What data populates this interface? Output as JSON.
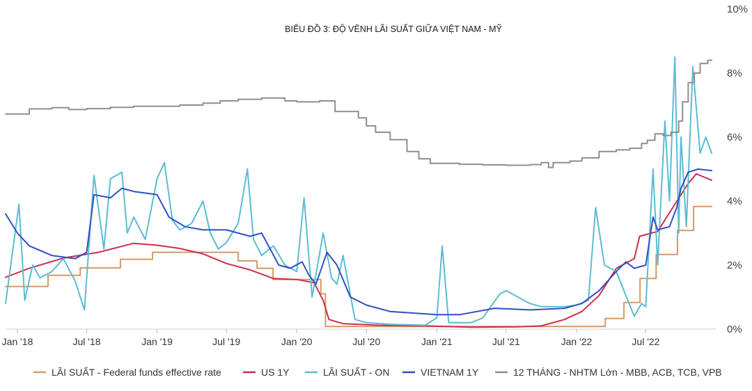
{
  "chart_data": {
    "type": "line",
    "title": "BIỂU ĐỒ 3: ĐỘ VÊNH LÃI SUẤT GIỮA VIỆT NAM - MỸ",
    "xlabel": "",
    "ylabel": "",
    "y_axis_side": "right",
    "ylim": [
      0,
      10
    ],
    "y_ticks": [
      {
        "value": 0,
        "label": "0%"
      },
      {
        "value": 2,
        "label": "2%"
      },
      {
        "value": 4,
        "label": "4%"
      },
      {
        "value": 6,
        "label": "6%"
      },
      {
        "value": 8,
        "label": "8%"
      },
      {
        "value": 10,
        "label": "10%"
      }
    ],
    "xlim": [
      "2017-12-01",
      "2022-12-31"
    ],
    "x_ticks": [
      {
        "date": "2018-01-01",
        "label": "Jan '18"
      },
      {
        "date": "2018-07-01",
        "label": "Jul '18"
      },
      {
        "date": "2019-01-01",
        "label": "Jan '19"
      },
      {
        "date": "2019-07-01",
        "label": "Jul '19"
      },
      {
        "date": "2020-01-01",
        "label": "Jan '20"
      },
      {
        "date": "2020-07-01",
        "label": "Jul '20"
      },
      {
        "date": "2021-01-01",
        "label": "Jan '21"
      },
      {
        "date": "2021-07-01",
        "label": "Jul '21"
      },
      {
        "date": "2022-01-01",
        "label": "Jan '22"
      },
      {
        "date": "2022-07-01",
        "label": "Jul '22"
      }
    ],
    "grid": false,
    "legend_position": "bottom",
    "series": [
      {
        "name": "LÃI SUẤT - Federal funds effective rate",
        "color": "#d4996a",
        "step": true,
        "points": [
          [
            "2017-12-01",
            1.33
          ],
          [
            "2018-03-22",
            1.68
          ],
          [
            "2018-06-14",
            1.91
          ],
          [
            "2018-09-27",
            2.18
          ],
          [
            "2018-12-20",
            2.4
          ],
          [
            "2019-08-01",
            2.13
          ],
          [
            "2019-09-19",
            1.9
          ],
          [
            "2019-10-31",
            1.55
          ],
          [
            "2020-03-04",
            1.1
          ],
          [
            "2020-03-16",
            0.08
          ],
          [
            "2021-01-01",
            0.08
          ],
          [
            "2022-03-17",
            0.33
          ],
          [
            "2022-05-05",
            0.83
          ],
          [
            "2022-06-16",
            1.58
          ],
          [
            "2022-07-28",
            2.33
          ],
          [
            "2022-09-22",
            3.08
          ],
          [
            "2022-11-03",
            3.83
          ],
          [
            "2022-12-20",
            3.83
          ]
        ]
      },
      {
        "name": "US 1Y",
        "color": "#cc2e4a",
        "step": false,
        "points": [
          [
            "2017-12-01",
            1.62
          ],
          [
            "2018-02-01",
            1.9
          ],
          [
            "2018-05-01",
            2.22
          ],
          [
            "2018-08-01",
            2.4
          ],
          [
            "2018-11-01",
            2.68
          ],
          [
            "2019-01-01",
            2.62
          ],
          [
            "2019-03-01",
            2.52
          ],
          [
            "2019-05-01",
            2.35
          ],
          [
            "2019-07-01",
            2.05
          ],
          [
            "2019-09-01",
            1.85
          ],
          [
            "2019-11-01",
            1.58
          ],
          [
            "2020-01-01",
            1.55
          ],
          [
            "2020-02-15",
            1.45
          ],
          [
            "2020-03-10",
            0.9
          ],
          [
            "2020-03-25",
            0.3
          ],
          [
            "2020-05-01",
            0.17
          ],
          [
            "2020-08-01",
            0.12
          ],
          [
            "2020-12-01",
            0.1
          ],
          [
            "2021-04-01",
            0.06
          ],
          [
            "2021-08-01",
            0.07
          ],
          [
            "2021-10-01",
            0.1
          ],
          [
            "2021-12-01",
            0.3
          ],
          [
            "2022-01-15",
            0.55
          ],
          [
            "2022-03-01",
            1.05
          ],
          [
            "2022-04-15",
            1.9
          ],
          [
            "2022-06-01",
            2.2
          ],
          [
            "2022-06-15",
            2.9
          ],
          [
            "2022-08-01",
            3.05
          ],
          [
            "2022-09-15",
            3.9
          ],
          [
            "2022-10-20",
            4.55
          ],
          [
            "2022-11-10",
            4.85
          ],
          [
            "2022-12-20",
            4.65
          ]
        ]
      },
      {
        "name": "LÃI SUẤT - ON",
        "color": "#5bbcd1",
        "step": false,
        "points": [
          [
            "2017-12-01",
            0.8
          ],
          [
            "2018-01-05",
            3.9
          ],
          [
            "2018-01-20",
            0.9
          ],
          [
            "2018-02-10",
            2.0
          ],
          [
            "2018-03-01",
            1.6
          ],
          [
            "2018-04-01",
            1.8
          ],
          [
            "2018-05-01",
            2.2
          ],
          [
            "2018-06-01",
            1.5
          ],
          [
            "2018-06-25",
            0.6
          ],
          [
            "2018-07-20",
            4.8
          ],
          [
            "2018-08-15",
            2.5
          ],
          [
            "2018-09-01",
            4.7
          ],
          [
            "2018-10-01",
            4.9
          ],
          [
            "2018-10-15",
            3.0
          ],
          [
            "2018-11-01",
            3.5
          ],
          [
            "2018-12-01",
            2.8
          ],
          [
            "2019-01-01",
            4.7
          ],
          [
            "2019-01-20",
            5.2
          ],
          [
            "2019-02-10",
            3.4
          ],
          [
            "2019-03-01",
            3.1
          ],
          [
            "2019-04-01",
            3.3
          ],
          [
            "2019-05-01",
            4.0
          ],
          [
            "2019-05-20",
            3.0
          ],
          [
            "2019-06-10",
            2.5
          ],
          [
            "2019-07-01",
            2.7
          ],
          [
            "2019-08-01",
            3.3
          ],
          [
            "2019-08-25",
            5.0
          ],
          [
            "2019-09-10",
            2.8
          ],
          [
            "2019-10-01",
            2.3
          ],
          [
            "2019-11-01",
            2.6
          ],
          [
            "2019-12-01",
            2.0
          ],
          [
            "2020-01-01",
            1.8
          ],
          [
            "2020-01-20",
            4.1
          ],
          [
            "2020-02-10",
            1.0
          ],
          [
            "2020-03-10",
            3.0
          ],
          [
            "2020-04-01",
            1.6
          ],
          [
            "2020-04-15",
            1.4
          ],
          [
            "2020-05-01",
            2.3
          ],
          [
            "2020-06-01",
            0.3
          ],
          [
            "2020-07-01",
            0.2
          ],
          [
            "2020-09-01",
            0.15
          ],
          [
            "2020-12-01",
            0.12
          ],
          [
            "2021-01-01",
            0.35
          ],
          [
            "2021-01-15",
            2.6
          ],
          [
            "2021-02-01",
            0.2
          ],
          [
            "2021-04-01",
            0.2
          ],
          [
            "2021-05-01",
            0.35
          ],
          [
            "2021-06-15",
            1.1
          ],
          [
            "2021-07-01",
            1.2
          ],
          [
            "2021-08-01",
            1.0
          ],
          [
            "2021-09-01",
            0.8
          ],
          [
            "2021-10-01",
            0.7
          ],
          [
            "2021-12-01",
            0.7
          ],
          [
            "2022-01-01",
            0.75
          ],
          [
            "2022-02-01",
            0.9
          ],
          [
            "2022-02-20",
            3.8
          ],
          [
            "2022-03-15",
            2.0
          ],
          [
            "2022-04-15",
            1.8
          ],
          [
            "2022-05-15",
            0.9
          ],
          [
            "2022-06-01",
            0.4
          ],
          [
            "2022-06-20",
            0.8
          ],
          [
            "2022-07-01",
            0.7
          ],
          [
            "2022-07-20",
            5.0
          ],
          [
            "2022-08-01",
            2.0
          ],
          [
            "2022-08-20",
            6.5
          ],
          [
            "2022-09-01",
            4.0
          ],
          [
            "2022-09-15",
            8.5
          ],
          [
            "2022-09-25",
            3.0
          ],
          [
            "2022-10-01",
            6.0
          ],
          [
            "2022-10-15",
            3.2
          ],
          [
            "2022-11-01",
            8.2
          ],
          [
            "2022-11-20",
            5.5
          ],
          [
            "2022-12-05",
            6.0
          ],
          [
            "2022-12-20",
            5.5
          ]
        ]
      },
      {
        "name": "VIETNAM 1Y",
        "color": "#2f4fc4",
        "step": false,
        "points": [
          [
            "2017-12-01",
            3.6
          ],
          [
            "2018-01-01",
            3.0
          ],
          [
            "2018-02-01",
            2.6
          ],
          [
            "2018-04-01",
            2.3
          ],
          [
            "2018-06-01",
            2.2
          ],
          [
            "2018-07-01",
            2.4
          ],
          [
            "2018-07-20",
            4.2
          ],
          [
            "2018-09-01",
            4.1
          ],
          [
            "2018-10-01",
            4.4
          ],
          [
            "2018-11-01",
            4.3
          ],
          [
            "2019-01-01",
            4.2
          ],
          [
            "2019-02-01",
            3.5
          ],
          [
            "2019-03-15",
            3.2
          ],
          [
            "2019-05-01",
            3.1
          ],
          [
            "2019-07-01",
            3.1
          ],
          [
            "2019-09-01",
            2.9
          ],
          [
            "2019-10-01",
            3.0
          ],
          [
            "2019-11-15",
            2.0
          ],
          [
            "2019-12-15",
            1.9
          ],
          [
            "2020-01-15",
            2.1
          ],
          [
            "2020-02-01",
            1.7
          ],
          [
            "2020-02-20",
            1.4
          ],
          [
            "2020-03-20",
            2.4
          ],
          [
            "2020-04-15",
            2.0
          ],
          [
            "2020-05-20",
            1.0
          ],
          [
            "2020-07-01",
            0.75
          ],
          [
            "2020-09-01",
            0.55
          ],
          [
            "2020-11-01",
            0.5
          ],
          [
            "2021-01-01",
            0.45
          ],
          [
            "2021-03-01",
            0.45
          ],
          [
            "2021-06-01",
            0.65
          ],
          [
            "2021-09-01",
            0.6
          ],
          [
            "2021-12-01",
            0.65
          ],
          [
            "2022-01-15",
            0.8
          ],
          [
            "2022-03-01",
            1.2
          ],
          [
            "2022-04-15",
            1.8
          ],
          [
            "2022-05-10",
            2.1
          ],
          [
            "2022-06-01",
            1.9
          ],
          [
            "2022-07-01",
            2.0
          ],
          [
            "2022-07-20",
            3.5
          ],
          [
            "2022-08-01",
            3.1
          ],
          [
            "2022-09-01",
            3.2
          ],
          [
            "2022-09-20",
            3.8
          ],
          [
            "2022-10-01",
            4.4
          ],
          [
            "2022-10-20",
            4.9
          ],
          [
            "2022-11-15",
            5.0
          ],
          [
            "2022-12-20",
            4.95
          ]
        ]
      },
      {
        "name": "12 THÁNG - NHTM Lớn - MBB, ACB, TCB, VPB",
        "color": "#8e8e8e",
        "step": true,
        "points": [
          [
            "2017-12-01",
            6.72
          ],
          [
            "2018-02-01",
            6.88
          ],
          [
            "2018-04-01",
            6.92
          ],
          [
            "2018-05-15",
            6.86
          ],
          [
            "2018-07-01",
            6.89
          ],
          [
            "2018-09-01",
            6.93
          ],
          [
            "2018-11-01",
            6.96
          ],
          [
            "2019-03-01",
            7.0
          ],
          [
            "2019-05-01",
            7.06
          ],
          [
            "2019-06-15",
            7.13
          ],
          [
            "2019-08-01",
            7.18
          ],
          [
            "2019-10-01",
            7.22
          ],
          [
            "2019-12-01",
            7.13
          ],
          [
            "2020-01-01",
            7.1
          ],
          [
            "2020-03-01",
            7.13
          ],
          [
            "2020-04-10",
            6.8
          ],
          [
            "2020-05-01",
            6.8
          ],
          [
            "2020-06-10",
            6.6
          ],
          [
            "2020-07-01",
            6.35
          ],
          [
            "2020-07-25",
            6.15
          ],
          [
            "2020-09-01",
            5.92
          ],
          [
            "2020-10-15",
            5.55
          ],
          [
            "2020-11-15",
            5.32
          ],
          [
            "2020-12-15",
            5.18
          ],
          [
            "2021-03-01",
            5.15
          ],
          [
            "2021-05-01",
            5.13
          ],
          [
            "2021-07-01",
            5.12
          ],
          [
            "2021-09-01",
            5.14
          ],
          [
            "2021-10-01",
            5.2
          ],
          [
            "2021-10-20",
            5.05
          ],
          [
            "2021-11-01",
            5.2
          ],
          [
            "2021-12-15",
            5.25
          ],
          [
            "2022-01-15",
            5.35
          ],
          [
            "2022-03-01",
            5.55
          ],
          [
            "2022-04-15",
            5.6
          ],
          [
            "2022-05-20",
            5.65
          ],
          [
            "2022-06-20",
            5.8
          ],
          [
            "2022-07-05",
            5.9
          ],
          [
            "2022-07-25",
            6.1
          ],
          [
            "2022-08-15",
            6.05
          ],
          [
            "2022-09-05",
            6.15
          ],
          [
            "2022-09-25",
            6.5
          ],
          [
            "2022-10-05",
            7.1
          ],
          [
            "2022-10-20",
            7.7
          ],
          [
            "2022-11-05",
            8.0
          ],
          [
            "2022-11-20",
            8.3
          ],
          [
            "2022-12-10",
            8.4
          ],
          [
            "2022-12-20",
            8.4
          ]
        ]
      }
    ]
  }
}
